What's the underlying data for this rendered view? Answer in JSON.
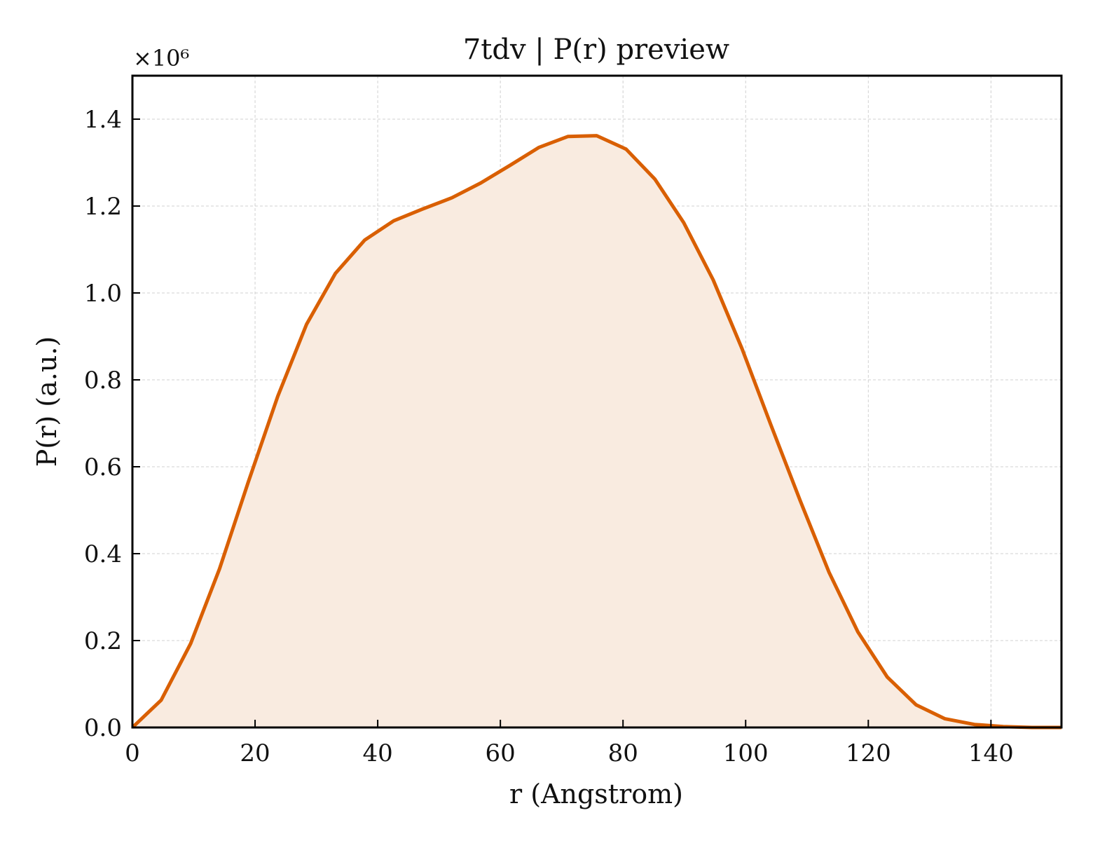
{
  "chart_data": {
    "type": "area",
    "title": "7tdv | P(r) preview",
    "xlabel": "r (Angstrom)",
    "ylabel": "P(r) (a.u.)",
    "y_multiplier_label": "×10⁶",
    "xlim": [
      0,
      151.5
    ],
    "ylim": [
      0,
      1.5
    ],
    "y_scale_factor": 1000000,
    "grid": true,
    "x_ticks": [
      0,
      20,
      40,
      60,
      80,
      100,
      120,
      140
    ],
    "x_tick_labels": [
      "0",
      "20",
      "40",
      "60",
      "80",
      "100",
      "120",
      "140"
    ],
    "y_ticks": [
      0.0,
      0.2,
      0.4,
      0.6,
      0.8,
      1.0,
      1.2,
      1.4
    ],
    "y_tick_labels": [
      "0.0",
      "0.2",
      "0.4",
      "0.6",
      "0.8",
      "1.0",
      "1.2",
      "1.4"
    ],
    "colors": {
      "line": "#d95f02",
      "fill": "#f9ebe0",
      "grid": "#d0d0d0",
      "axes": "#000000"
    },
    "series": [
      {
        "x": [
          0,
          4.7,
          9.5,
          14.2,
          18.9,
          23.7,
          28.4,
          33.1,
          37.9,
          42.6,
          47.3,
          52.1,
          56.8,
          61.5,
          66.3,
          71.0,
          75.7,
          80.5,
          85.2,
          89.9,
          94.7,
          99.4,
          104.1,
          108.9,
          113.6,
          118.3,
          123.1,
          127.8,
          132.5,
          137.3,
          142.0,
          146.7,
          151.5
        ],
        "y": [
          0.0,
          0.063,
          0.193,
          0.365,
          0.565,
          0.762,
          0.928,
          1.045,
          1.122,
          1.166,
          1.193,
          1.219,
          1.253,
          1.293,
          1.335,
          1.36,
          1.362,
          1.331,
          1.262,
          1.162,
          1.03,
          0.872,
          0.697,
          0.522,
          0.357,
          0.22,
          0.116,
          0.052,
          0.02,
          0.007,
          0.002,
          0.0,
          0.0
        ]
      }
    ]
  }
}
